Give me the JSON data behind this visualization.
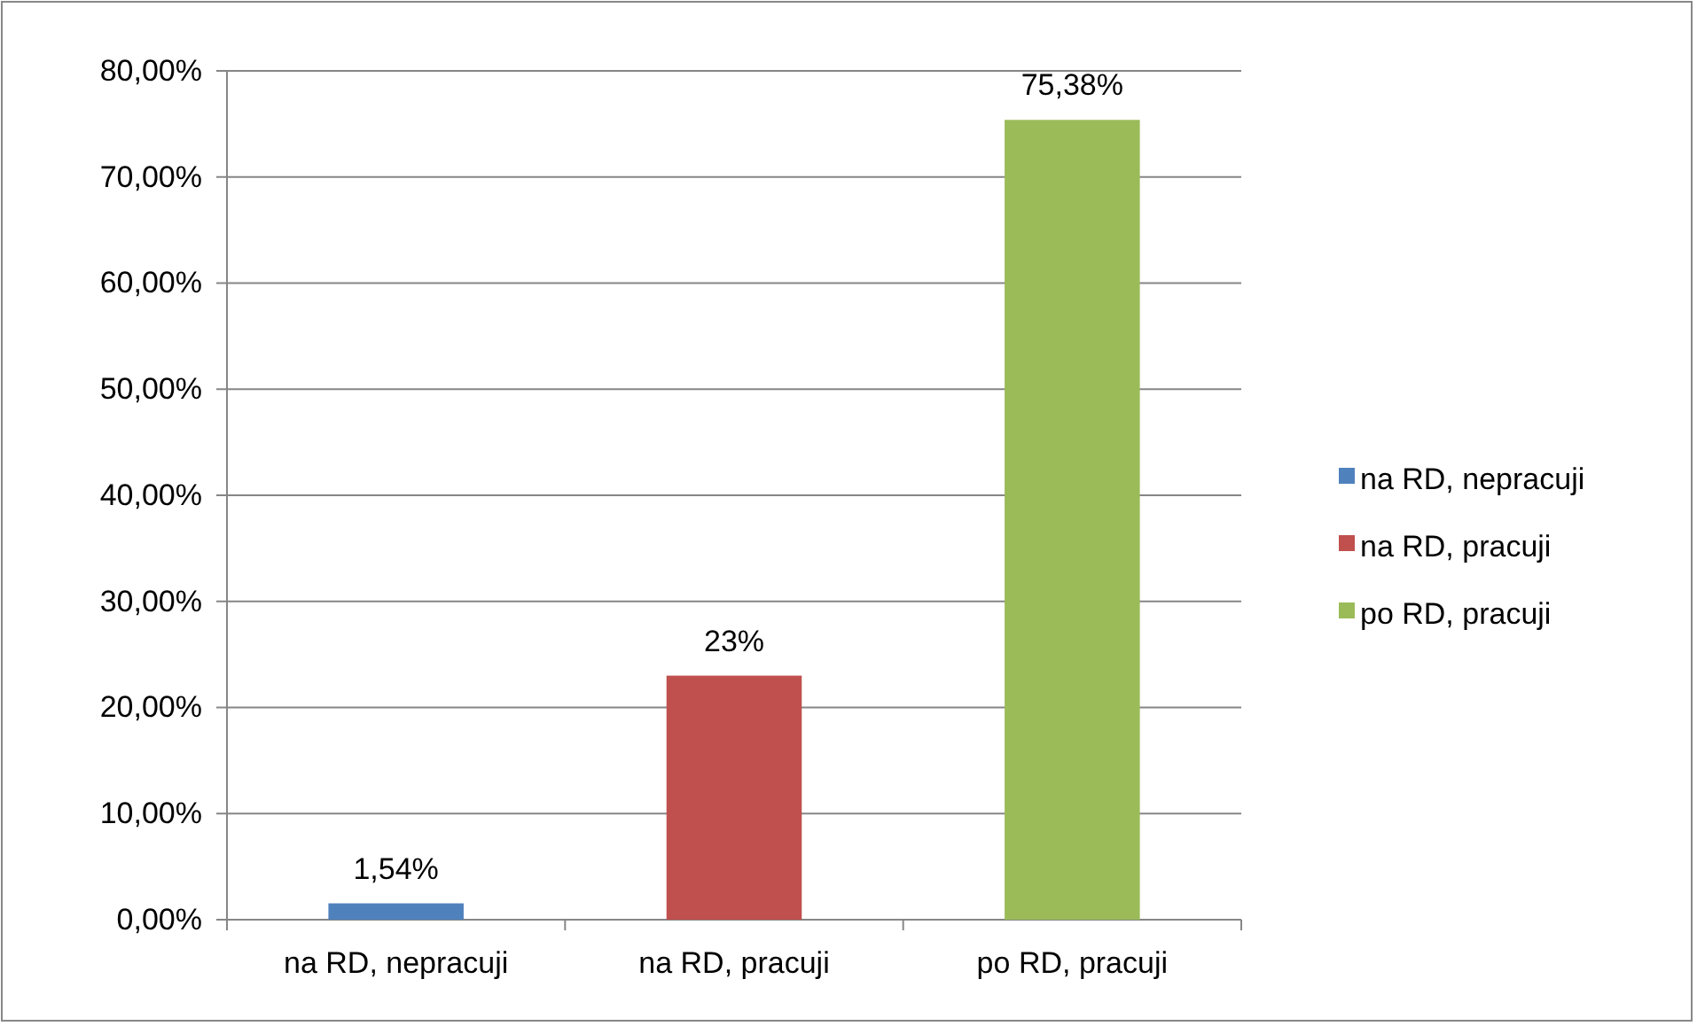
{
  "chart_data": {
    "type": "bar",
    "categories": [
      "na RD, nepracuji",
      "na RD, pracuji",
      "po RD, pracuji"
    ],
    "series": [
      {
        "name": "na RD, nepracuji",
        "color": "#4f81bd",
        "values": [
          1.54,
          null,
          null
        ],
        "value_labels": [
          "1,54%",
          null,
          null
        ]
      },
      {
        "name": "na RD, pracuji",
        "color": "#c0504d",
        "values": [
          null,
          23,
          null
        ],
        "value_labels": [
          null,
          "23%",
          null
        ]
      },
      {
        "name": "po RD, pracuji",
        "color": "#9bbb59",
        "values": [
          null,
          null,
          75.38
        ],
        "value_labels": [
          null,
          null,
          "75,38%"
        ]
      }
    ],
    "ylim": [
      0,
      80
    ],
    "yticks": [
      {
        "value": 0,
        "label": "0,00%"
      },
      {
        "value": 10,
        "label": "10,00%"
      },
      {
        "value": 20,
        "label": "20,00%"
      },
      {
        "value": 30,
        "label": "30,00%"
      },
      {
        "value": 40,
        "label": "40,00%"
      },
      {
        "value": 50,
        "label": "50,00%"
      },
      {
        "value": 60,
        "label": "60,00%"
      },
      {
        "value": 70,
        "label": "70,00%"
      },
      {
        "value": 80,
        "label": "80,00%"
      }
    ],
    "grid": "y",
    "legend": "right"
  }
}
